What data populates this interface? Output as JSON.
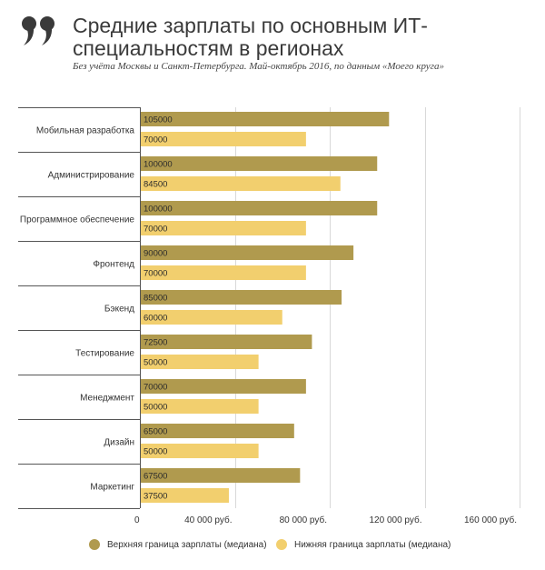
{
  "header": {
    "title": "Средние зарплаты по основным ИТ-специальностям в регионах",
    "subtitle": "Без учёта Москвы и Санкт-Петербурга. Май-октябрь 2016, по данным «Моего круга»"
  },
  "colors": {
    "upper": "#b09a4e",
    "lower": "#f2cf6e",
    "quote": "#3a3a3a",
    "grid": "#d9d9d9",
    "axis": "#555555"
  },
  "icons": {
    "quote": "quote-icon"
  },
  "chart_data": {
    "type": "bar",
    "orientation": "horizontal",
    "title": "Средние зарплаты по основным ИТ-специальностям в регионах",
    "subtitle": "Без учёта Москвы и Санкт-Петербурга. Май-октябрь 2016, по данным «Моего круга»",
    "categories": [
      "Мобильная разработка",
      "Администрирование",
      "Программное обеспечение",
      "Фронтенд",
      "Бэкенд",
      "Тестирование",
      "Менеджмент",
      "Дизайн",
      "Маркетинг"
    ],
    "series": [
      {
        "name": "Верхняя граница зарплаты (медиана)",
        "values": [
          105000,
          100000,
          100000,
          90000,
          85000,
          72500,
          70000,
          65000,
          67500
        ]
      },
      {
        "name": "Нижняя граница зарплаты (медиана)",
        "values": [
          70000,
          84500,
          70000,
          70000,
          60000,
          50000,
          50000,
          50000,
          37500
        ]
      }
    ],
    "xlim": [
      0,
      160000
    ],
    "xticks": [
      0,
      40000,
      80000,
      120000,
      160000
    ],
    "xtick_labels": [
      "0",
      "40 000 руб.",
      "80 000 руб.",
      "120 000 руб.",
      "160 000 руб."
    ],
    "grid": true,
    "legend_position": "bottom"
  }
}
